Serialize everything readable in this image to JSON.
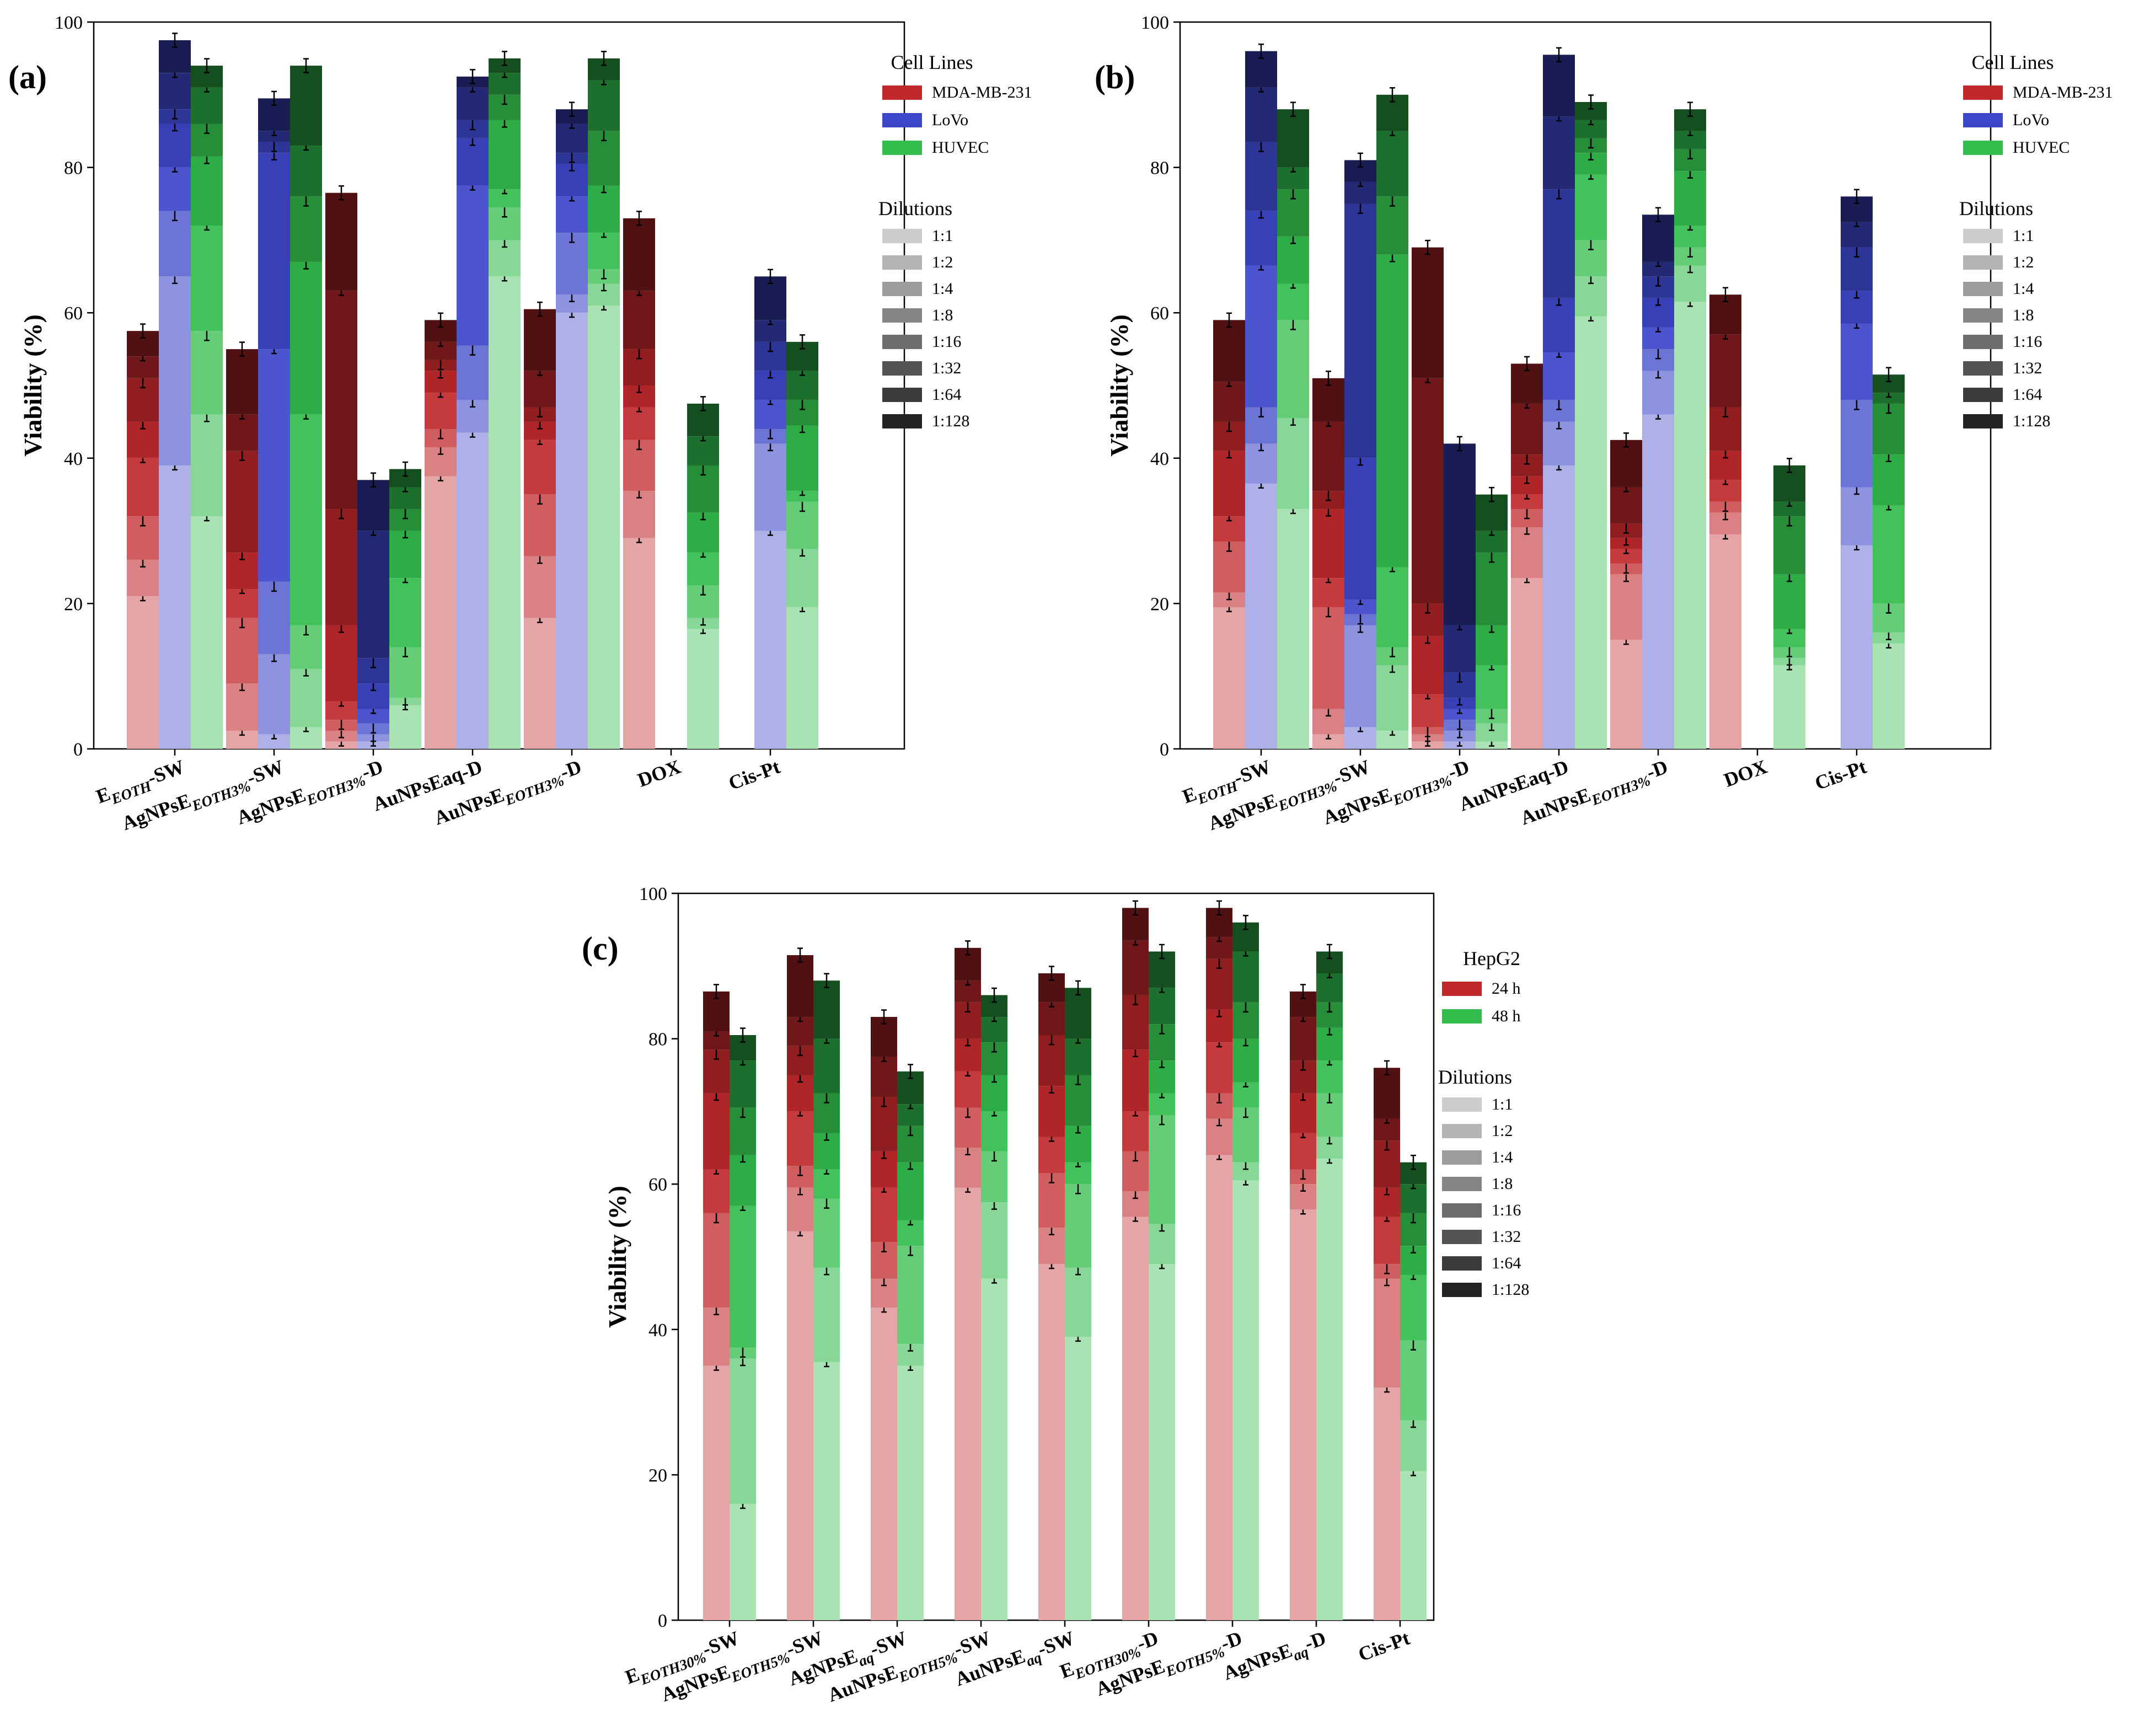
{
  "chart_data": [
    {
      "type": "bar",
      "panel_label": "(a)",
      "ylabel": "Viability (%)",
      "ylim": [
        0,
        100
      ],
      "yticks": [
        0,
        20,
        40,
        60,
        80,
        100
      ],
      "categories": [
        {
          "base": "E",
          "sub": "EOTH",
          "suffix": "-SW"
        },
        {
          "base": "AgNPsE",
          "sub": "EOTH3%",
          "suffix": "-SW"
        },
        {
          "base": "AgNPsE",
          "sub": "EOTH3%",
          "suffix": "-D"
        },
        {
          "base": "AuNPsEaq-D",
          "sub": "",
          "suffix": ""
        },
        {
          "base": "AuNPsE",
          "sub": "EOTH3%",
          "suffix": "-D"
        },
        {
          "base": "DOX",
          "sub": "",
          "suffix": ""
        },
        {
          "base": "Cis-Pt",
          "sub": "",
          "suffix": ""
        }
      ],
      "legend_series_title": "Cell Lines",
      "legend_dilution_title": "Dilutions",
      "dilutions": [
        "1:1",
        "1:2",
        "1:4",
        "1:8",
        "1:16",
        "1:32",
        "1:64",
        "1:128"
      ],
      "series": [
        {
          "name": "MDA-MB-231",
          "color": "#c0282c",
          "values": [
            [
              21,
              26,
              32,
              40,
              45,
              51,
              54,
              57.5
            ],
            [
              2.5,
              9,
              18,
              22,
              27,
              41,
              46,
              55
            ],
            [
              1,
              2.5,
              4,
              6.5,
              17,
              33,
              63,
              76.5
            ],
            [
              37.5,
              41.5,
              44,
              49,
              52,
              53.5,
              56,
              59
            ],
            [
              18,
              26.5,
              35,
              42.5,
              45,
              47,
              52,
              60.5
            ],
            [
              29,
              35.5,
              42.5,
              47,
              50,
              55,
              63,
              73
            ],
            [
              0,
              0,
              0,
              0,
              0,
              0,
              0,
              0
            ]
          ]
        },
        {
          "name": "LoVo",
          "color": "#3c46c8",
          "values": [
            [
              39,
              65,
              74,
              80,
              86,
              88,
              93,
              97.5
            ],
            [
              2,
              13,
              23,
              55,
              82,
              83.5,
              85,
              89.5
            ],
            [
              1,
              2,
              3.5,
              5.5,
              9,
              12.5,
              30,
              37
            ],
            [
              43.5,
              48,
              55.5,
              77.5,
              84,
              86.5,
              91,
              92.5
            ],
            [
              60,
              62.5,
              71,
              76,
              80.5,
              82,
              86,
              88
            ],
            [
              0,
              0,
              0,
              0,
              0,
              0,
              0,
              0
            ],
            [
              30,
              42,
              44,
              48,
              52,
              56,
              59,
              65
            ]
          ]
        },
        {
          "name": "HUVEC",
          "color": "#32bd4c",
          "values": [
            [
              32,
              46,
              57.5,
              72,
              81.5,
              86,
              91,
              94
            ],
            [
              3,
              11,
              17,
              46,
              67,
              76,
              83,
              94
            ],
            [
              6,
              7,
              14,
              23.5,
              30,
              33,
              36,
              38.5
            ],
            [
              65,
              70,
              74.5,
              77,
              86.5,
              90,
              93,
              95
            ],
            [
              61,
              64,
              66,
              71,
              77.5,
              85,
              92,
              95
            ],
            [
              16.5,
              18,
              22.5,
              27,
              32.5,
              39,
              43,
              47.5
            ],
            [
              19.5,
              27.5,
              34,
              35.5,
              44.5,
              48,
              52,
              56
            ]
          ]
        }
      ]
    },
    {
      "type": "bar",
      "panel_label": "(b)",
      "ylabel": "Viability (%)",
      "ylim": [
        0,
        100
      ],
      "yticks": [
        0,
        20,
        40,
        60,
        80,
        100
      ],
      "categories": [
        {
          "base": "E",
          "sub": "EOTH",
          "suffix": "-SW"
        },
        {
          "base": "AgNPsE",
          "sub": "EOTH3%",
          "suffix": "-SW"
        },
        {
          "base": "AgNPsE",
          "sub": "EOTH3%",
          "suffix": "-D"
        },
        {
          "base": "AuNPsEaq-D",
          "sub": "",
          "suffix": ""
        },
        {
          "base": "AuNPsE",
          "sub": "EOTH3%",
          "suffix": "-D"
        },
        {
          "base": "DOX",
          "sub": "",
          "suffix": ""
        },
        {
          "base": "Cis-Pt",
          "sub": "",
          "suffix": ""
        }
      ],
      "legend_series_title": "Cell Lines",
      "legend_dilution_title": "Dilutions",
      "dilutions": [
        "1:1",
        "1:2",
        "1:4",
        "1:8",
        "1:16",
        "1:32",
        "1:64",
        "1:128"
      ],
      "series": [
        {
          "name": "MDA-MB-231",
          "color": "#c0282c",
          "values": [
            [
              19.5,
              21.5,
              28.5,
              32,
              41,
              45,
              50.5,
              59
            ],
            [
              2,
              5.5,
              19.5,
              23.5,
              33,
              35.5,
              45,
              51
            ],
            [
              1,
              2,
              3,
              7.5,
              15.5,
              20,
              51,
              69
            ],
            [
              23.5,
              30.5,
              33,
              35,
              37.5,
              40.5,
              47.5,
              53
            ],
            [
              15,
              24,
              25.5,
              27.5,
              29,
              31,
              36,
              42.5
            ],
            [
              29.5,
              32.5,
              34,
              37,
              41,
              47,
              57,
              62.5
            ],
            [
              0,
              0,
              0,
              0,
              0,
              0,
              0,
              0
            ]
          ]
        },
        {
          "name": "LoVo",
          "color": "#3c46c8",
          "values": [
            [
              36.5,
              42,
              47,
              66.5,
              74,
              83.5,
              91,
              96
            ],
            [
              3,
              17,
              18.5,
              20.5,
              40,
              75,
              78,
              81
            ],
            [
              1,
              2.5,
              4,
              5.5,
              7,
              10.5,
              17,
              42
            ],
            [
              39,
              45,
              48,
              54.5,
              62,
              77,
              87,
              95.5
            ],
            [
              46,
              52,
              55,
              58,
              62,
              65,
              67,
              73.5
            ],
            [
              0,
              0,
              0,
              0,
              0,
              0,
              0,
              0
            ],
            [
              28,
              36,
              48,
              58.5,
              63,
              69,
              72.5,
              76
            ]
          ]
        },
        {
          "name": "HUVEC",
          "color": "#32bd4c",
          "values": [
            [
              33,
              45.5,
              59,
              64,
              70.5,
              77,
              80,
              88
            ],
            [
              2.5,
              11.5,
              14,
              25,
              68,
              76,
              85,
              90
            ],
            [
              1,
              3.5,
              5.5,
              11.5,
              17,
              27,
              30,
              35
            ],
            [
              59.5,
              65,
              70,
              79,
              82,
              84,
              86.5,
              89
            ],
            [
              61.5,
              66.5,
              69,
              72,
              79.5,
              82.5,
              85,
              88
            ],
            [
              11.5,
              12.5,
              14,
              16.5,
              24,
              32,
              34,
              39
            ],
            [
              14.5,
              16,
              20,
              33.5,
              40.5,
              47.5,
              49,
              51.5
            ]
          ]
        }
      ]
    },
    {
      "type": "bar",
      "panel_label": "(c)",
      "ylabel": "Viability (%)",
      "ylim": [
        0,
        100
      ],
      "yticks": [
        0,
        20,
        40,
        60,
        80,
        100
      ],
      "categories": [
        {
          "base": "E",
          "sub": "EOTH30%",
          "suffix": "-SW"
        },
        {
          "base": "AgNPsE",
          "sub": "EOTH5%",
          "suffix": "-SW"
        },
        {
          "base": "AgNPsE",
          "sub": "aq",
          "suffix": "-SW"
        },
        {
          "base": "AuNPsE",
          "sub": "EOTH5%",
          "suffix": "-SW"
        },
        {
          "base": "AuNPsE",
          "sub": "aq",
          "suffix": "-SW"
        },
        {
          "base": "E",
          "sub": "EOTH30%",
          "suffix": "-D"
        },
        {
          "base": "AgNPsE",
          "sub": "EOTH5%",
          "suffix": "-D"
        },
        {
          "base": "AgNPsE",
          "sub": "aq",
          "suffix": "-D"
        },
        {
          "base": "Cis-Pt",
          "sub": "",
          "suffix": ""
        }
      ],
      "legend_series_title": "HepG2",
      "legend_dilution_title": "Dilutions",
      "dilutions": [
        "1:1",
        "1:2",
        "1:4",
        "1:8",
        "1:16",
        "1:32",
        "1:64",
        "1:128"
      ],
      "series": [
        {
          "name": "24 h",
          "color": "#c0282c",
          "values": [
            [
              35,
              43,
              56,
              62,
              72.5,
              78.5,
              81,
              86.5
            ],
            [
              53.5,
              59.5,
              62.5,
              70,
              75,
              79,
              83,
              91.5
            ],
            [
              43,
              47,
              52,
              59.5,
              64.5,
              72,
              77.5,
              83
            ],
            [
              59.5,
              65,
              70.5,
              75.5,
              80,
              85,
              88,
              92.5
            ],
            [
              49,
              54,
              61.5,
              66.5,
              73.5,
              80.5,
              85,
              89
            ],
            [
              55.5,
              59,
              64.5,
              70,
              78.5,
              86,
              93.5,
              98
            ],
            [
              64,
              69,
              72.5,
              79.5,
              84,
              91,
              94,
              98
            ],
            [
              56.5,
              60,
              62,
              67,
              72.5,
              77,
              83,
              86.5
            ],
            [
              32,
              47,
              49,
              55.5,
              59.5,
              66,
              69,
              76
            ]
          ]
        },
        {
          "name": "48 h",
          "color": "#32bd4c",
          "values": [
            [
              16,
              36,
              37.5,
              57,
              64,
              70.5,
              77,
              80.5
            ],
            [
              35.5,
              48.5,
              58,
              62,
              67,
              72.5,
              80,
              88
            ],
            [
              35,
              38,
              51.5,
              55,
              63,
              68,
              71,
              75.5
            ],
            [
              47,
              57.5,
              64.5,
              70,
              75,
              79.5,
              83,
              86
            ],
            [
              39,
              48.5,
              60,
              63,
              68,
              75,
              80,
              87
            ],
            [
              49,
              54.5,
              69.5,
              72.5,
              77,
              82,
              87,
              92
            ],
            [
              60.5,
              63,
              70.5,
              74,
              80,
              85,
              92,
              96
            ],
            [
              63.5,
              66.5,
              72.5,
              77,
              81.5,
              85,
              89,
              92
            ],
            [
              20.5,
              27.5,
              38.5,
              47.5,
              51.5,
              56,
              60,
              63
            ]
          ]
        }
      ]
    }
  ]
}
